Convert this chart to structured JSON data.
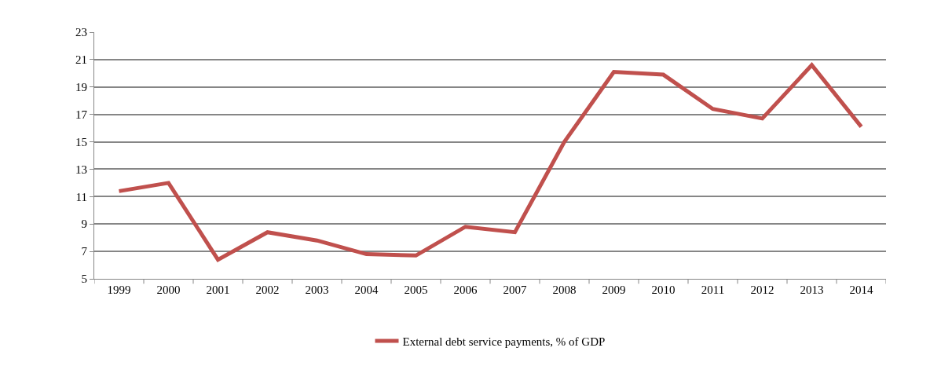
{
  "chart_data": {
    "type": "line",
    "categories": [
      "1999",
      "2000",
      "2001",
      "2002",
      "2003",
      "2004",
      "2005",
      "2006",
      "2007",
      "2008",
      "2009",
      "2010",
      "2011",
      "2012",
      "2013",
      "2014"
    ],
    "series": [
      {
        "name": "External debt service payments, % of GDP",
        "color": "#c0504d",
        "values": [
          11.4,
          12.0,
          6.4,
          8.4,
          7.8,
          6.8,
          6.7,
          8.8,
          8.4,
          15.0,
          20.1,
          19.9,
          17.4,
          16.7,
          20.6,
          16.1
        ]
      }
    ],
    "ylim": [
      5,
      23
    ],
    "yticks": [
      5,
      7,
      9,
      11,
      13,
      15,
      17,
      19,
      21,
      23
    ],
    "grid": "y",
    "legend": "bottom",
    "marker": "none",
    "line_style": "solid"
  }
}
